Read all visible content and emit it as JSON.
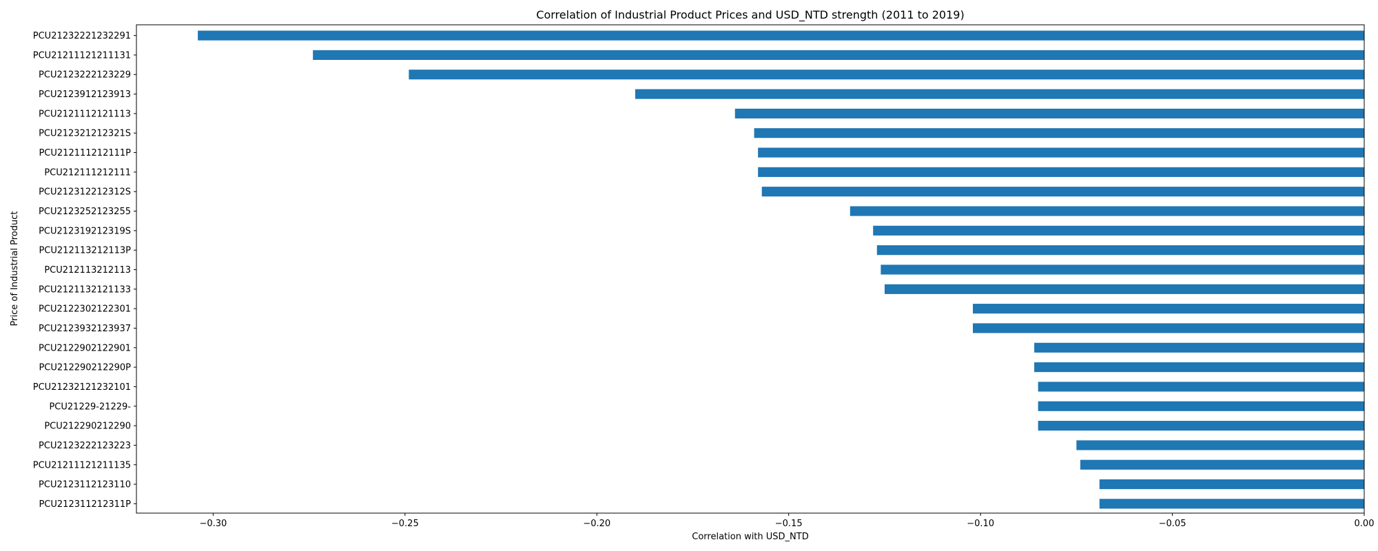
{
  "chart_data": {
    "type": "bar",
    "orientation": "horizontal",
    "title": "Correlation of Industrial Product Prices and USD_NTD strength (2011 to 2019)",
    "xlabel": "Correlation with USD_NTD",
    "ylabel": "Price of Industrial Product",
    "xlim": [
      -0.32,
      0.0
    ],
    "xticks": [
      -0.3,
      -0.25,
      -0.2,
      -0.15,
      -0.1,
      -0.05,
      0.0
    ],
    "xtick_labels": [
      "−0.30",
      "−0.25",
      "−0.20",
      "−0.15",
      "−0.10",
      "−0.05",
      "0.00"
    ],
    "grid": false,
    "bar_color": "#1f77b4",
    "categories": [
      "PCU21232221232291",
      "PCU21211121211131",
      "PCU2123222123229",
      "PCU2123912123913",
      "PCU2121112121113",
      "PCU212321212321S",
      "PCU212111212111P",
      "PCU212111212111",
      "PCU212312212312S",
      "PCU2123252123255",
      "PCU212319212319S",
      "PCU212113212113P",
      "PCU212113212113",
      "PCU2121132121133",
      "PCU2122302122301",
      "PCU2123932123937",
      "PCU2122902122901",
      "PCU212290212290P",
      "PCU21232121232101",
      "PCU21229-21229-",
      "PCU212290212290",
      "PCU2123222123223",
      "PCU21211121211135",
      "PCU2123112123110",
      "PCU212311212311P"
    ],
    "values": [
      -0.304,
      -0.274,
      -0.249,
      -0.19,
      -0.164,
      -0.159,
      -0.158,
      -0.158,
      -0.157,
      -0.134,
      -0.128,
      -0.127,
      -0.126,
      -0.125,
      -0.102,
      -0.102,
      -0.086,
      -0.086,
      -0.085,
      -0.085,
      -0.085,
      -0.075,
      -0.074,
      -0.069,
      -0.069
    ]
  }
}
